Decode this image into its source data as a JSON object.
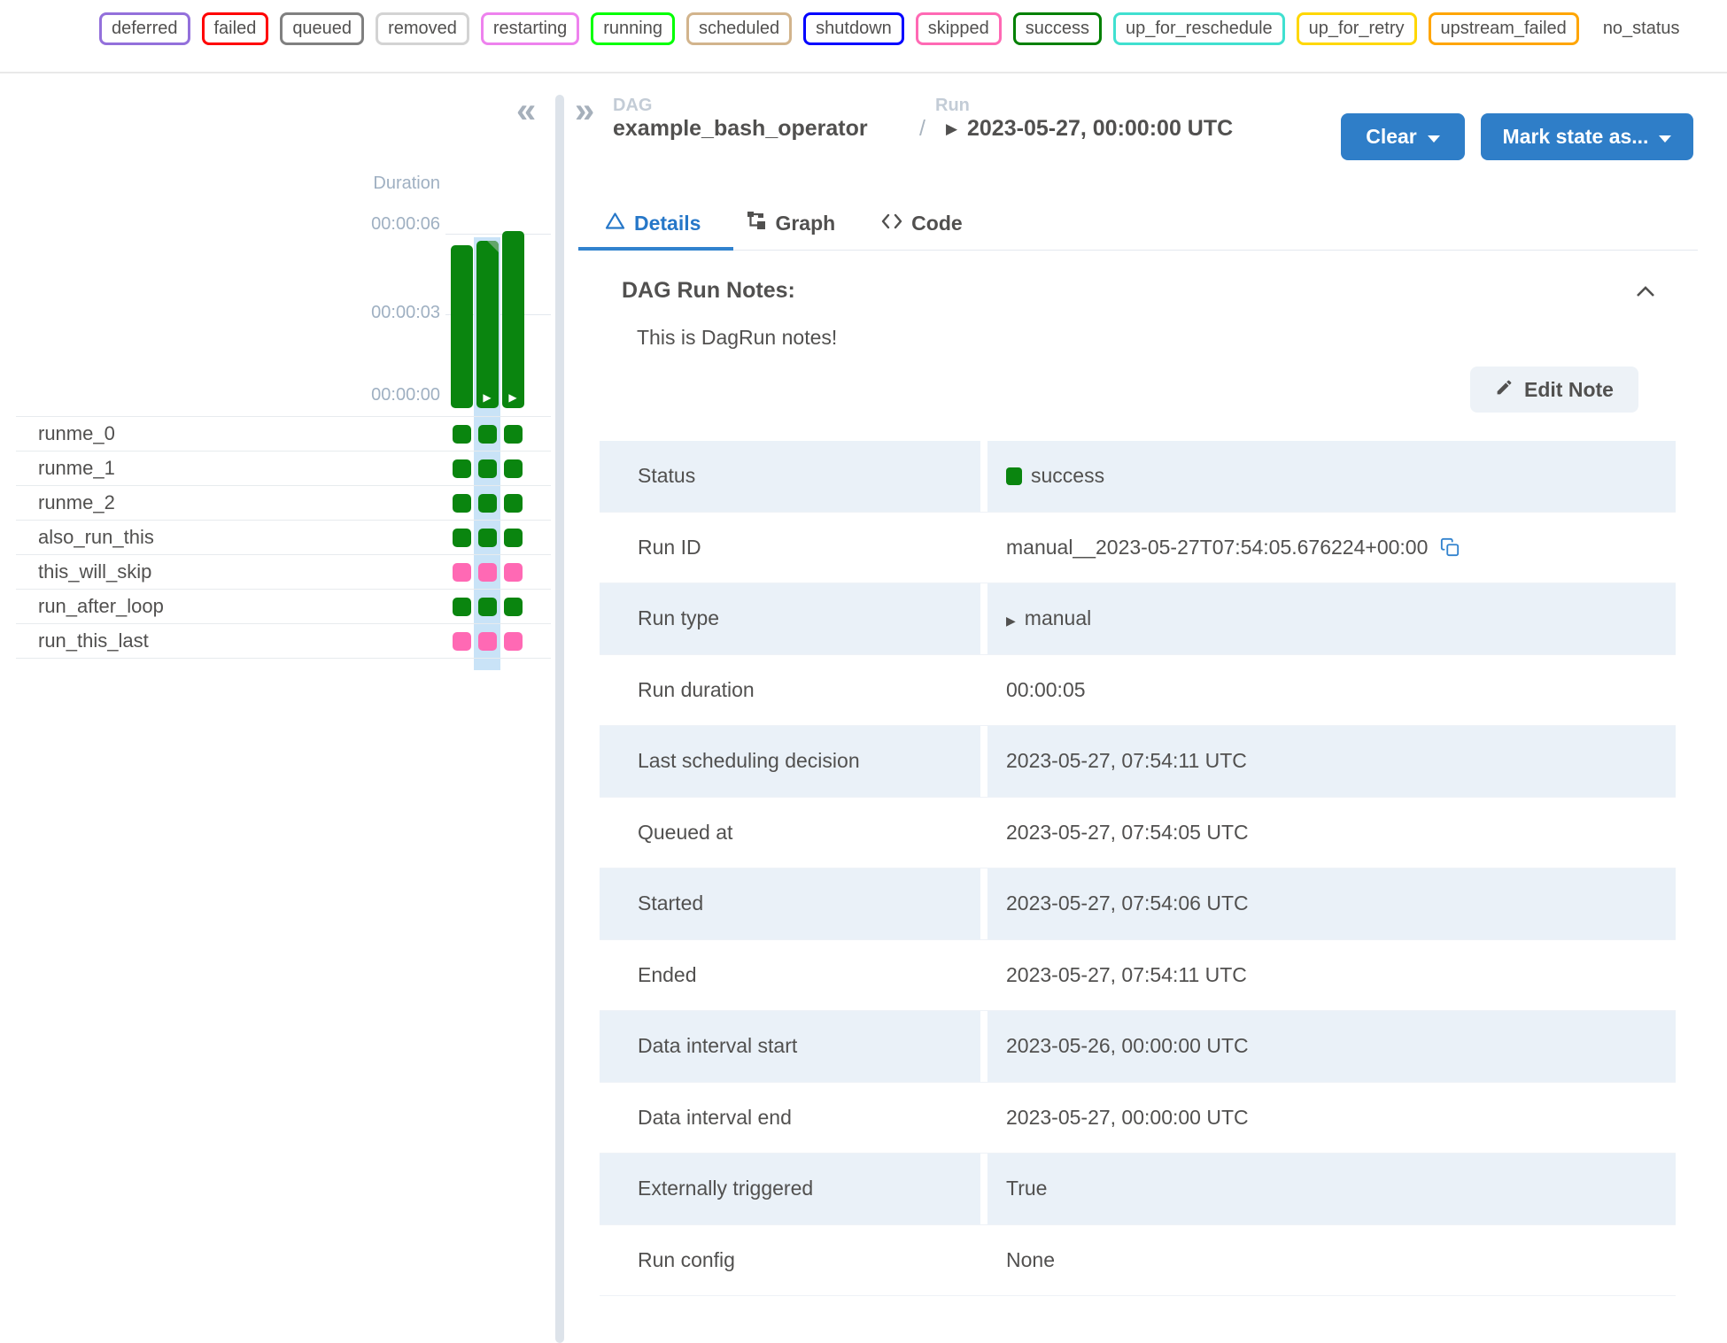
{
  "legend": {
    "statuses": [
      {
        "label": "deferred",
        "color": "#9370db"
      },
      {
        "label": "failed",
        "color": "#ff0000"
      },
      {
        "label": "queued",
        "color": "#808080"
      },
      {
        "label": "removed",
        "color": "#d3d3d3"
      },
      {
        "label": "restarting",
        "color": "#ee82ee"
      },
      {
        "label": "running",
        "color": "#00ff00"
      },
      {
        "label": "scheduled",
        "color": "#d2b48c"
      },
      {
        "label": "shutdown",
        "color": "#0000ff"
      },
      {
        "label": "skipped",
        "color": "#ff69b4"
      },
      {
        "label": "success",
        "color": "#008000"
      },
      {
        "label": "up_for_reschedule",
        "color": "#40e0d0"
      },
      {
        "label": "up_for_retry",
        "color": "#ffd700"
      },
      {
        "label": "upstream_failed",
        "color": "#ffa500"
      },
      {
        "label": "no_status",
        "color": null
      }
    ]
  },
  "header": {
    "dag_label": "DAG",
    "dag_name": "example_bash_operator",
    "separator": "/",
    "run_label": "Run",
    "run_name": "2023-05-27, 00:00:00 UTC",
    "clear_button": "Clear",
    "mark_state_button": "Mark state as..."
  },
  "tabs": [
    {
      "label": "Details",
      "active": true
    },
    {
      "label": "Graph",
      "active": false
    },
    {
      "label": "Code",
      "active": false
    }
  ],
  "notes": {
    "title": "DAG Run Notes:",
    "content": "This is DagRun notes!",
    "edit_button": "Edit Note"
  },
  "grid_panel": {
    "chart": {
      "title": "Duration",
      "y_ticks": [
        "00:00:06",
        "00:00:03",
        "00:00:00"
      ],
      "bars": [
        {
          "duration_seconds": 5.95,
          "state": "success",
          "has_play": false,
          "has_note": false,
          "selected": false
        },
        {
          "duration_seconds": 6.1,
          "state": "success",
          "has_play": true,
          "has_note": true,
          "selected": true
        },
        {
          "duration_seconds": 6.45,
          "state": "success",
          "has_play": true,
          "has_note": false,
          "selected": false
        }
      ]
    },
    "tasks": [
      {
        "name": "runme_0",
        "states": [
          "success",
          "success",
          "success"
        ]
      },
      {
        "name": "runme_1",
        "states": [
          "success",
          "success",
          "success"
        ]
      },
      {
        "name": "runme_2",
        "states": [
          "success",
          "success",
          "success"
        ]
      },
      {
        "name": "also_run_this",
        "states": [
          "success",
          "success",
          "success"
        ]
      },
      {
        "name": "this_will_skip",
        "states": [
          "skipped",
          "skipped",
          "skipped"
        ]
      },
      {
        "name": "run_after_loop",
        "states": [
          "success",
          "success",
          "success"
        ]
      },
      {
        "name": "run_this_last",
        "states": [
          "skipped",
          "skipped",
          "skipped"
        ]
      }
    ]
  },
  "details_table": {
    "rows": [
      {
        "label": "Status",
        "value": "success",
        "type": "status"
      },
      {
        "label": "Run ID",
        "value": "manual__2023-05-27T07:54:05.676224+00:00",
        "copyable": true
      },
      {
        "label": "Run type",
        "value": "manual",
        "icon": "play"
      },
      {
        "label": "Run duration",
        "value": "00:00:05"
      },
      {
        "label": "Last scheduling decision",
        "value": "2023-05-27, 07:54:11 UTC"
      },
      {
        "label": "Queued at",
        "value": "2023-05-27, 07:54:05 UTC"
      },
      {
        "label": "Started",
        "value": "2023-05-27, 07:54:06 UTC"
      },
      {
        "label": "Ended",
        "value": "2023-05-27, 07:54:11 UTC"
      },
      {
        "label": "Data interval start",
        "value": "2023-05-26, 00:00:00 UTC"
      },
      {
        "label": "Data interval end",
        "value": "2023-05-27, 00:00:00 UTC"
      },
      {
        "label": "Externally triggered",
        "value": "True"
      },
      {
        "label": "Run config",
        "value": "None"
      }
    ]
  },
  "colors": {
    "accent_blue": "#2f7ec8",
    "active_tab_blue": "#2677c8",
    "tab_underline": "#3182ce",
    "selected_column": "#c9e3f7",
    "row_stripe": "#eaf1f8",
    "state_map": {
      "success": "#0a850f",
      "skipped": "#ff69b4"
    }
  }
}
